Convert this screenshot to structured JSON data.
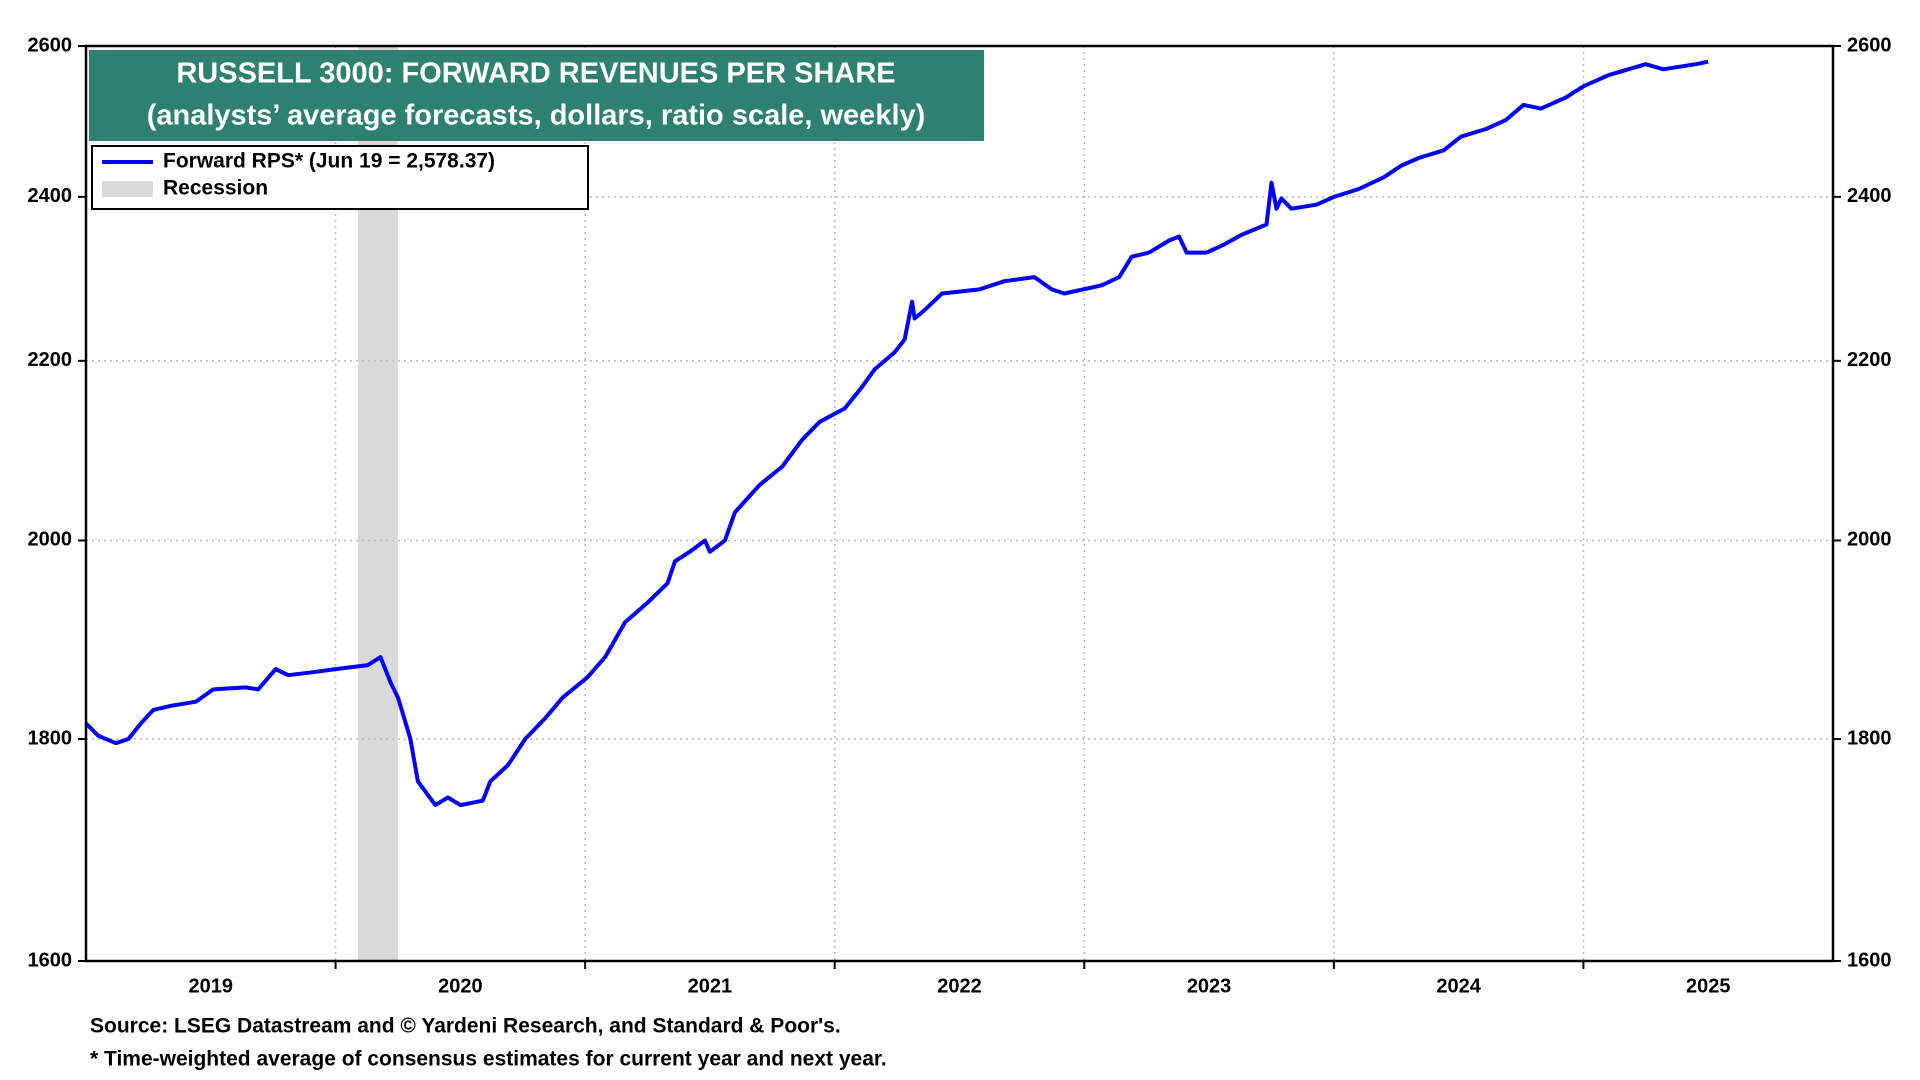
{
  "chart_data": {
    "type": "line",
    "title": "RUSSELL 3000: FORWARD REVENUES PER SHARE",
    "subtitle": "(analysts’ average forecasts, dollars, ratio scale, weekly)",
    "log_scale": true,
    "grid": true,
    "legend_position": "upper left",
    "ylim": [
      1600,
      2600
    ],
    "yticks": [
      1600,
      1800,
      2000,
      2200,
      2400,
      2600
    ],
    "xlim": [
      2019,
      2026
    ],
    "xgrid": [
      2020,
      2021,
      2022,
      2023,
      2024,
      2025
    ],
    "xticks": [
      {
        "value": 2019.5,
        "label": "2019"
      },
      {
        "value": 2020.5,
        "label": "2020"
      },
      {
        "value": 2021.5,
        "label": "2021"
      },
      {
        "value": 2022.5,
        "label": "2022"
      },
      {
        "value": 2023.5,
        "label": "2023"
      },
      {
        "value": 2024.5,
        "label": "2024"
      },
      {
        "value": 2025.5,
        "label": "2025"
      }
    ],
    "recession_label": "Recession",
    "recession_color": "#d9d9d9",
    "recession_bands": [
      [
        2020.09,
        2020.25
      ]
    ],
    "x": [
      2019.0,
      2019.05,
      2019.12,
      2019.17,
      2019.22,
      2019.27,
      2019.34,
      2019.44,
      2019.51,
      2019.64,
      2019.69,
      2019.76,
      2019.81,
      2019.91,
      2020.0,
      2020.13,
      2020.18,
      2020.22,
      2020.25,
      2020.3,
      2020.33,
      2020.4,
      2020.45,
      2020.5,
      2020.59,
      2020.62,
      2020.69,
      2020.76,
      2020.84,
      2020.91,
      2021.01,
      2021.08,
      2021.16,
      2021.25,
      2021.33,
      2021.36,
      2021.43,
      2021.48,
      2021.5,
      2021.56,
      2021.6,
      2021.65,
      2021.7,
      2021.79,
      2021.87,
      2021.94,
      2022.04,
      2022.11,
      2022.16,
      2022.24,
      2022.28,
      2022.31,
      2022.32,
      2022.36,
      2022.43,
      2022.58,
      2022.68,
      2022.8,
      2022.87,
      2022.92,
      2023.07,
      2023.14,
      2023.19,
      2023.26,
      2023.34,
      2023.38,
      2023.41,
      2023.49,
      2023.56,
      2023.63,
      2023.73,
      2023.75,
      2023.77,
      2023.79,
      2023.83,
      2023.93,
      2024.0,
      2024.1,
      2024.2,
      2024.27,
      2024.34,
      2024.44,
      2024.51,
      2024.61,
      2024.69,
      2024.76,
      2024.83,
      2024.93,
      2025.0,
      2025.1,
      2025.25,
      2025.32,
      2025.45,
      2025.5
    ],
    "series": [
      {
        "name": "Forward RPS* (Jun 19 = 2,578.37)",
        "color": "#0000ff",
        "values": [
          1815,
          1803,
          1796,
          1800,
          1815,
          1828,
          1832,
          1836,
          1848,
          1850,
          1848,
          1868,
          1862,
          1865,
          1868,
          1872,
          1880,
          1855,
          1840,
          1800,
          1760,
          1738,
          1745,
          1738,
          1742,
          1760,
          1775,
          1800,
          1820,
          1840,
          1860,
          1880,
          1915,
          1935,
          1955,
          1978,
          1990,
          2000,
          1988,
          2000,
          2030,
          2045,
          2060,
          2080,
          2110,
          2130,
          2145,
          2170,
          2190,
          2210,
          2225,
          2270,
          2250,
          2260,
          2280,
          2285,
          2295,
          2300,
          2285,
          2280,
          2290,
          2300,
          2325,
          2330,
          2345,
          2350,
          2330,
          2330,
          2340,
          2352,
          2365,
          2418,
          2385,
          2398,
          2385,
          2390,
          2400,
          2410,
          2425,
          2440,
          2450,
          2460,
          2478,
          2488,
          2500,
          2520,
          2515,
          2530,
          2545,
          2560,
          2575,
          2568,
          2575,
          2578.37
        ]
      }
    ],
    "footnotes": [
      "Source: LSEG Datastream and © Yardeni Research, and Standard & Poor's.",
      "* Time-weighted average of consensus estimates for current year and next year."
    ]
  }
}
